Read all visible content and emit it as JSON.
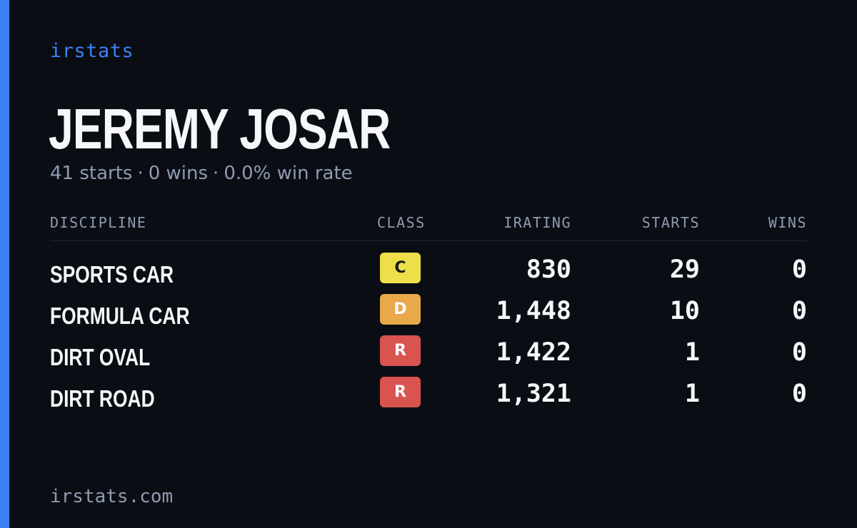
{
  "brand": "irstats",
  "driver": {
    "name": "JEREMY JOSAR",
    "starts_text": "41 starts",
    "wins_text": "0 wins",
    "winrate_text": "0.0% win rate",
    "separator": "·"
  },
  "table": {
    "headers": {
      "discipline": "DISCIPLINE",
      "class": "CLASS",
      "irating": "IRATING",
      "starts": "STARTS",
      "wins": "WINS"
    },
    "rows": [
      {
        "discipline": "SPORTS CAR",
        "class": "C",
        "class_color": "#ecdf4a",
        "irating": "830",
        "starts": "29",
        "wins": "0"
      },
      {
        "discipline": "FORMULA CAR",
        "class": "D",
        "class_color": "#e9a94a",
        "irating": "1,448",
        "starts": "10",
        "wins": "0"
      },
      {
        "discipline": "DIRT OVAL",
        "class": "R",
        "class_color": "#d9534f",
        "irating": "1,422",
        "starts": "1",
        "wins": "0"
      },
      {
        "discipline": "DIRT ROAD",
        "class": "R",
        "class_color": "#d9534f",
        "irating": "1,321",
        "starts": "1",
        "wins": "0"
      }
    ]
  },
  "footer": {
    "url": "irstats.com"
  },
  "colors": {
    "accent": "#3b82f6",
    "background": "#0a0d14",
    "text_primary": "#f5f7fa",
    "text_muted": "#8f9bb0"
  }
}
